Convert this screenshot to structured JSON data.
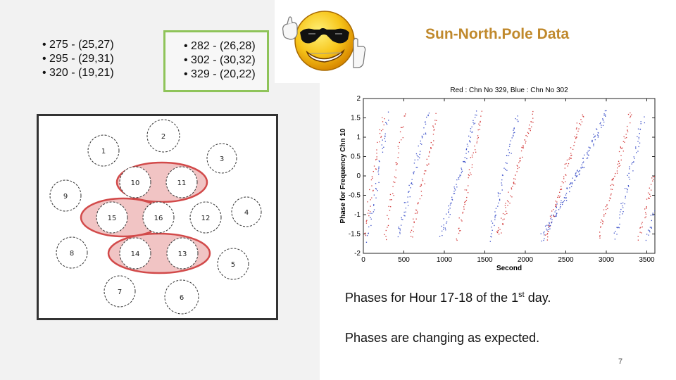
{
  "left_list": [
    "• 275 - (25,27)",
    "• 295 - (29,31)",
    "• 320 - (19,21)"
  ],
  "mid_list": [
    "• 282 - (26,28)",
    "• 302 - (30,32)",
    "• 329 - (20,22)"
  ],
  "slide_title": "Sun-North.Pole Data",
  "diagram": {
    "circles": [
      {
        "label": "1"
      },
      {
        "label": "2"
      },
      {
        "label": "3"
      },
      {
        "label": "4"
      },
      {
        "label": "5"
      },
      {
        "label": "6"
      },
      {
        "label": "7"
      },
      {
        "label": "8"
      },
      {
        "label": "9"
      },
      {
        "label": "10"
      },
      {
        "label": "11"
      },
      {
        "label": "12"
      },
      {
        "label": "13"
      },
      {
        "label": "14"
      },
      {
        "label": "15"
      },
      {
        "label": "16"
      }
    ],
    "highlight_color": "#d24a4a"
  },
  "chart_data": {
    "type": "scatter",
    "title": "Red : Chn No 329,  Blue : Chn No 302",
    "xlabel": "Second",
    "ylabel": "Phase for Frequency Chn 10",
    "xlim": [
      0,
      3600
    ],
    "ylim": [
      -2,
      2
    ],
    "xticks": [
      0,
      500,
      1000,
      1500,
      2000,
      2500,
      3000,
      3500
    ],
    "yticks": [
      2,
      1.5,
      1,
      0.5,
      0,
      -0.5,
      -1,
      -1.5,
      -2
    ],
    "series": [
      {
        "color": "#d23a3a",
        "values": [
          [
            0,
            -1.6
          ],
          [
            250,
            1.6
          ],
          [
            260,
            -1.6
          ],
          [
            500,
            1.6
          ],
          [
            580,
            -1.6
          ],
          [
            900,
            1.5
          ],
          [
            1150,
            -1.6
          ],
          [
            1450,
            1.6
          ],
          [
            1650,
            -1.6
          ],
          [
            2100,
            1.6
          ],
          [
            2250,
            -1.6
          ],
          [
            2700,
            1.6
          ],
          [
            2900,
            -1.6
          ],
          [
            3300,
            1.6
          ],
          [
            3400,
            -1.6
          ],
          [
            3600,
            0.2
          ]
        ]
      },
      {
        "color": "#3a4fc8",
        "values": [
          [
            50,
            -1.6
          ],
          [
            300,
            1.6
          ],
          [
            420,
            -1.6
          ],
          [
            800,
            1.6
          ],
          [
            950,
            -1.6
          ],
          [
            1400,
            1.6
          ],
          [
            1550,
            -1.6
          ],
          [
            1900,
            1.6
          ],
          [
            2200,
            -1.6
          ],
          [
            2700,
            0.3
          ],
          [
            3000,
            1.6
          ],
          [
            3100,
            -1.6
          ],
          [
            3450,
            1.5
          ],
          [
            3500,
            -1.6
          ],
          [
            3600,
            -0.8
          ]
        ]
      }
    ],
    "grid": false
  },
  "caption1": {
    "prefix": "Phases for Hour 17-18 of the 1",
    "sup": "st",
    "suffix": " day."
  },
  "caption2": "Phases are changing as expected.",
  "page_number": "7"
}
